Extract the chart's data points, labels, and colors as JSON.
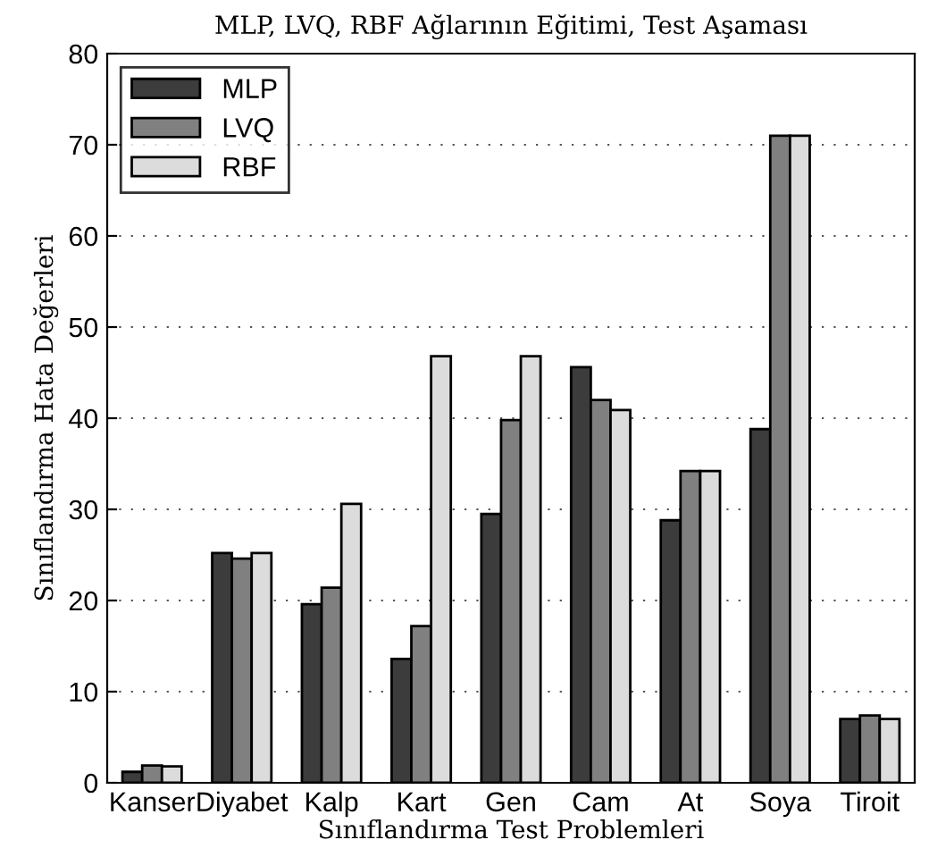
{
  "chart_data": {
    "type": "bar",
    "title": "MLP, LVQ, RBF Ağlarının Eğitimi, Test Aşaması",
    "xlabel": "Sınıflandırma Test Problemleri",
    "ylabel": "Sınıflandırma Hata Değerleri",
    "categories": [
      "Kanser",
      "Diyabet",
      "Kalp",
      "Kart",
      "Gen",
      "Cam",
      "At",
      "Soya",
      "Tiroit"
    ],
    "series": [
      {
        "name": "MLP",
        "color": "#3c3c3c",
        "values": [
          1.2,
          25.2,
          19.6,
          13.6,
          29.5,
          45.6,
          28.8,
          38.8,
          7.0
        ]
      },
      {
        "name": "LVQ",
        "color": "#808080",
        "values": [
          1.9,
          24.6,
          21.4,
          17.2,
          39.8,
          42.0,
          34.2,
          71.0,
          7.4
        ]
      },
      {
        "name": "RBF",
        "color": "#dcdcdc",
        "values": [
          1.8,
          25.2,
          30.6,
          46.8,
          46.8,
          40.9,
          34.2,
          71.0,
          7.0
        ]
      }
    ],
    "ylim": [
      0,
      80
    ],
    "yticks": [
      0,
      10,
      20,
      30,
      40,
      50,
      60,
      70,
      80
    ],
    "grid": "y",
    "legend": "top left"
  }
}
